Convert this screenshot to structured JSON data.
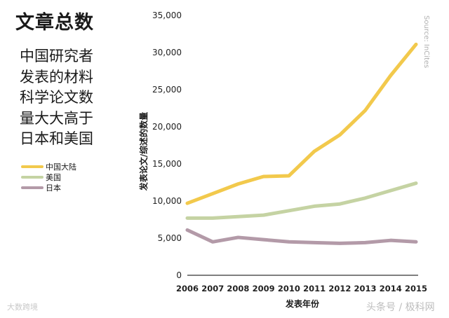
{
  "chart_data": {
    "type": "line",
    "title": "文章总数",
    "subtitle_lines": [
      "中国研究者",
      "发表的材料",
      "科学论文数",
      "量大大高于",
      "日本和美国"
    ],
    "xlabel": "发表年份",
    "ylabel": "发表论文/综述的数量",
    "x": [
      "2006",
      "2007",
      "2008",
      "2009",
      "2010",
      "2011",
      "2012",
      "2013",
      "2014",
      "2015"
    ],
    "y_ticks": [
      "0",
      "5,000",
      "10,000",
      "15,000",
      "20,000",
      "25,000",
      "30,000",
      "35,000"
    ],
    "ylim": [
      0,
      35000
    ],
    "series": [
      {
        "name": "中国大陆",
        "color": "#f2c94c",
        "values": [
          9700,
          11000,
          12300,
          13300,
          13400,
          16700,
          18900,
          22200,
          26900,
          31100
        ]
      },
      {
        "name": "美国",
        "color": "#c5d3a3",
        "values": [
          7700,
          7700,
          7900,
          8100,
          8700,
          9300,
          9600,
          10400,
          11400,
          12400
        ]
      },
      {
        "name": "日本",
        "color": "#b39aa8",
        "values": [
          6100,
          4500,
          5100,
          4800,
          4500,
          4400,
          4300,
          4400,
          4700,
          4500
        ]
      }
    ],
    "legend_position": "left",
    "grid": false,
    "source": "Source: InCites"
  },
  "watermarks": {
    "left": "大数跨境",
    "right": "头条号 / 极科网"
  }
}
